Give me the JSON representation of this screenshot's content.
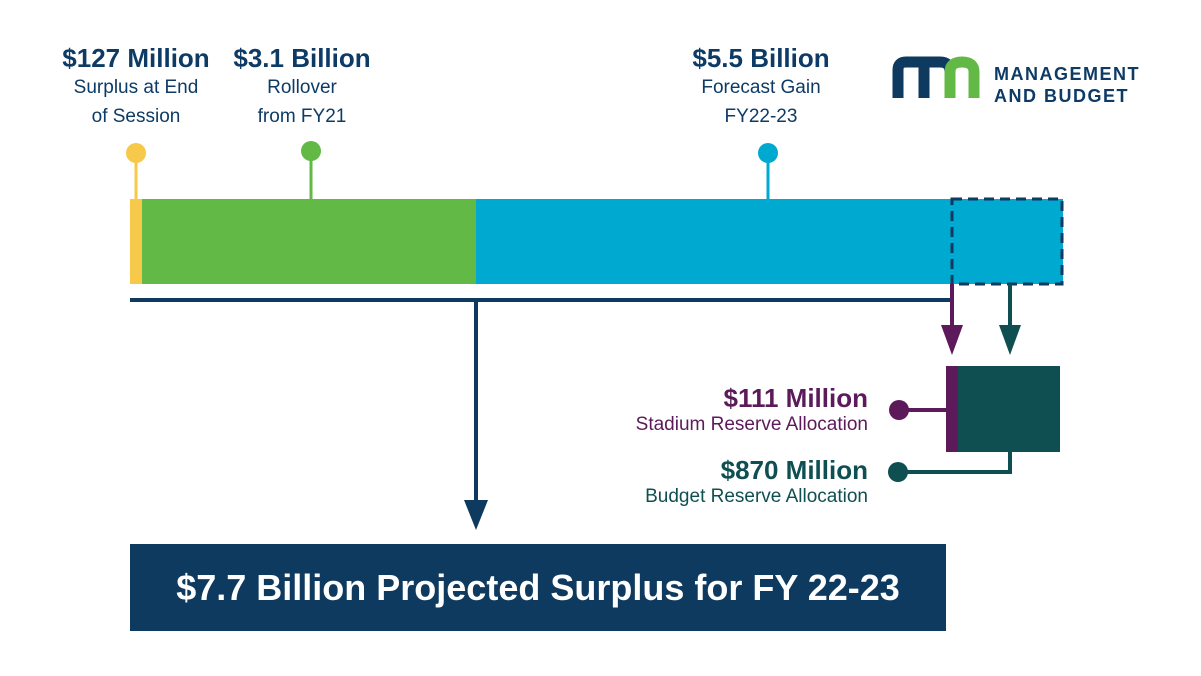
{
  "labels": {
    "surplus_end_session": {
      "amount": "$127 Million",
      "line1": "Surplus at End",
      "line2": "of Session"
    },
    "rollover": {
      "amount": "$3.1 Billion",
      "line1": "Rollover",
      "line2": "from FY21"
    },
    "forecast_gain": {
      "amount": "$5.5 Billion",
      "line1": "Forecast Gain",
      "line2": "FY22-23"
    },
    "stadium_reserve": {
      "amount": "$111 Million",
      "desc": "Stadium Reserve Allocation"
    },
    "budget_reserve": {
      "amount": "$870 Million",
      "desc": "Budget Reserve Allocation"
    }
  },
  "banner": {
    "text": "$7.7 Billion Projected Surplus for FY 22-23"
  },
  "logo": {
    "mark": "mn",
    "line1": "MANAGEMENT",
    "line2": "AND BUDGET"
  },
  "colors": {
    "surplus_yellow": "#f6c94a",
    "rollover_green": "#62b946",
    "forecast_blue": "#00a9d0",
    "navy": "#0d3a5e",
    "purple": "#5c1a5a",
    "teal": "#0f4f52"
  }
}
